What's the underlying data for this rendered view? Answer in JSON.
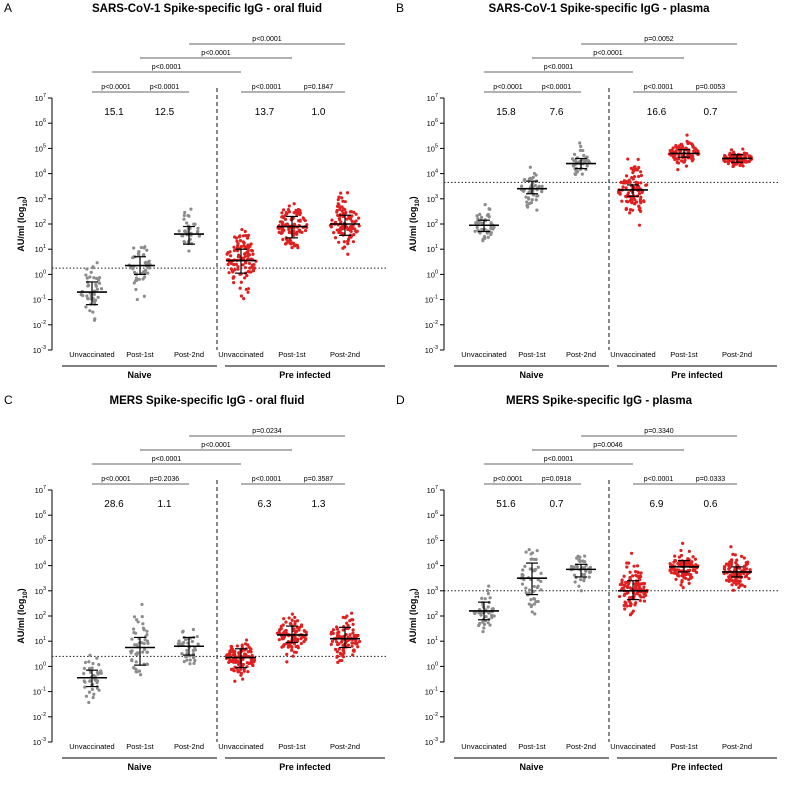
{
  "chart_data": [
    {
      "type": "scatter",
      "panel_letter": "A",
      "title": "SARS-CoV-1 Spike-specific IgG - oral fluid",
      "ylabel_main": "AU/ml (log",
      "ylabel_sub": "10",
      "ylabel_end": ")",
      "yscale": "log10",
      "ylim_exp": [
        -3,
        7
      ],
      "categories": [
        "Unvaccinated",
        "Post-1st",
        "Post-2nd",
        "Unvaccinated",
        "Post-1st",
        "Post-2nd"
      ],
      "groups": [
        {
          "name": "Naive",
          "color": "#8c8c8c"
        },
        {
          "name": "Pre infected",
          "color": "#e02020"
        }
      ],
      "threshold_log": 0.25,
      "series": [
        {
          "group": "Naive",
          "category": "Unvaccinated",
          "n": 45,
          "median_log": -0.7,
          "q1_log": -1.2,
          "q3_log": -0.3,
          "spread": 0.5
        },
        {
          "group": "Naive",
          "category": "Post-1st",
          "n": 50,
          "median_log": 0.35,
          "q1_log": 0.0,
          "q3_log": 0.7,
          "spread": 0.45
        },
        {
          "group": "Naive",
          "category": "Post-2nd",
          "n": 40,
          "median_log": 1.6,
          "q1_log": 1.2,
          "q3_log": 1.9,
          "spread": 0.35
        },
        {
          "group": "Pre infected",
          "category": "Unvaccinated",
          "n": 110,
          "median_log": 0.55,
          "q1_log": 0.05,
          "q3_log": 1.0,
          "spread": 0.55
        },
        {
          "group": "Pre infected",
          "category": "Post-1st",
          "n": 100,
          "median_log": 1.9,
          "q1_log": 1.45,
          "q3_log": 2.3,
          "spread": 0.45
        },
        {
          "group": "Pre infected",
          "category": "Post-2nd",
          "n": 100,
          "median_log": 2.0,
          "q1_log": 1.55,
          "q3_log": 2.35,
          "spread": 0.45
        }
      ],
      "fold_changes": [
        "15.1",
        "12.5",
        "13.7",
        "1.0"
      ],
      "comparisons": [
        {
          "from": 0,
          "to": 1,
          "label": "p<0.0001"
        },
        {
          "from": 1,
          "to": 2,
          "label": "p<0.0001"
        },
        {
          "from": 3,
          "to": 4,
          "label": "p<0.0001"
        },
        {
          "from": 4,
          "to": 5,
          "label": "p=0.1847"
        },
        {
          "from": 0,
          "to": 3,
          "label": "p<0.0001"
        },
        {
          "from": 1,
          "to": 4,
          "label": "p<0.0001"
        },
        {
          "from": 2,
          "to": 5,
          "label": "p<0.0001"
        }
      ]
    },
    {
      "type": "scatter",
      "panel_letter": "B",
      "title": "SARS-CoV-1 Spike-specific IgG - plasma",
      "ylabel_main": "AU/ml (log",
      "ylabel_sub": "10",
      "ylabel_end": ")",
      "yscale": "log10",
      "ylim_exp": [
        -3,
        7
      ],
      "categories": [
        "Unvaccinated",
        "Post-1st",
        "Post-2nd",
        "Unvaccinated",
        "Post-1st",
        "Post-2nd"
      ],
      "groups": [
        {
          "name": "Naive",
          "color": "#8c8c8c"
        },
        {
          "name": "Pre infected",
          "color": "#e02020"
        }
      ],
      "threshold_log": 3.65,
      "series": [
        {
          "group": "Naive",
          "category": "Unvaccinated",
          "n": 45,
          "median_log": 1.95,
          "q1_log": 1.7,
          "q3_log": 2.15,
          "spread": 0.35
        },
        {
          "group": "Naive",
          "category": "Post-1st",
          "n": 50,
          "median_log": 3.4,
          "q1_log": 3.2,
          "q3_log": 3.7,
          "spread": 0.35
        },
        {
          "group": "Naive",
          "category": "Post-2nd",
          "n": 40,
          "median_log": 4.4,
          "q1_log": 4.2,
          "q3_log": 4.6,
          "spread": 0.25
        },
        {
          "group": "Pre infected",
          "category": "Unvaccinated",
          "n": 110,
          "median_log": 3.35,
          "q1_log": 3.1,
          "q3_log": 3.55,
          "spread": 0.45
        },
        {
          "group": "Pre infected",
          "category": "Post-1st",
          "n": 100,
          "median_log": 4.8,
          "q1_log": 4.65,
          "q3_log": 4.95,
          "spread": 0.22
        },
        {
          "group": "Pre infected",
          "category": "Post-2nd",
          "n": 100,
          "median_log": 4.6,
          "q1_log": 4.45,
          "q3_log": 4.75,
          "spread": 0.15
        }
      ],
      "fold_changes": [
        "15.8",
        "7.6",
        "16.6",
        "0.7"
      ],
      "comparisons": [
        {
          "from": 0,
          "to": 1,
          "label": "p<0.0001"
        },
        {
          "from": 1,
          "to": 2,
          "label": "p<0.0001"
        },
        {
          "from": 3,
          "to": 4,
          "label": "p<0.0001"
        },
        {
          "from": 4,
          "to": 5,
          "label": "p=0.0053"
        },
        {
          "from": 0,
          "to": 3,
          "label": "p<0.0001"
        },
        {
          "from": 1,
          "to": 4,
          "label": "p<0.0001"
        },
        {
          "from": 2,
          "to": 5,
          "label": "p=0.0052"
        }
      ]
    },
    {
      "type": "scatter",
      "panel_letter": "C",
      "title": "MERS Spike-specific IgG - oral fluid",
      "ylabel_main": "AU/ml (log",
      "ylabel_sub": "10",
      "ylabel_end": ")",
      "yscale": "log10",
      "ylim_exp": [
        -3,
        7
      ],
      "categories": [
        "Unvaccinated",
        "Post-1st",
        "Post-2nd",
        "Unvaccinated",
        "Post-1st",
        "Post-2nd"
      ],
      "groups": [
        {
          "name": "Naive",
          "color": "#8c8c8c"
        },
        {
          "name": "Pre infected",
          "color": "#e02020"
        }
      ],
      "threshold_log": 0.4,
      "series": [
        {
          "group": "Naive",
          "category": "Unvaccinated",
          "n": 45,
          "median_log": -0.45,
          "q1_log": -0.8,
          "q3_log": -0.15,
          "spread": 0.4
        },
        {
          "group": "Naive",
          "category": "Post-1st",
          "n": 50,
          "median_log": 0.75,
          "q1_log": 0.05,
          "q3_log": 1.15,
          "spread": 0.6
        },
        {
          "group": "Naive",
          "category": "Post-2nd",
          "n": 40,
          "median_log": 0.8,
          "q1_log": 0.45,
          "q3_log": 1.15,
          "spread": 0.4
        },
        {
          "group": "Pre infected",
          "category": "Unvaccinated",
          "n": 110,
          "median_log": 0.35,
          "q1_log": -0.05,
          "q3_log": 0.7,
          "spread": 0.4
        },
        {
          "group": "Pre infected",
          "category": "Post-1st",
          "n": 100,
          "median_log": 1.25,
          "q1_log": 0.95,
          "q3_log": 1.6,
          "spread": 0.4
        },
        {
          "group": "Pre infected",
          "category": "Post-2nd",
          "n": 100,
          "median_log": 1.1,
          "q1_log": 0.75,
          "q3_log": 1.55,
          "spread": 0.45
        }
      ],
      "fold_changes": [
        "28.6",
        "1.1",
        "6.3",
        "1.3"
      ],
      "comparisons": [
        {
          "from": 0,
          "to": 1,
          "label": "p<0.0001"
        },
        {
          "from": 1,
          "to": 2,
          "label": "p=0.2036"
        },
        {
          "from": 3,
          "to": 4,
          "label": "p<0.0001"
        },
        {
          "from": 4,
          "to": 5,
          "label": "p=0.3587"
        },
        {
          "from": 0,
          "to": 3,
          "label": "p<0.0001"
        },
        {
          "from": 1,
          "to": 4,
          "label": "p<0.0001"
        },
        {
          "from": 2,
          "to": 5,
          "label": "p=0.0234"
        }
      ]
    },
    {
      "type": "scatter",
      "panel_letter": "D",
      "title": "MERS Spike-specific IgG - plasma",
      "ylabel_main": "AU/ml (log",
      "ylabel_sub": "10",
      "ylabel_end": ")",
      "yscale": "log10",
      "ylim_exp": [
        -3,
        7
      ],
      "categories": [
        "Unvaccinated",
        "Post-1st",
        "Post-2nd",
        "Unvaccinated",
        "Post-1st",
        "Post-2nd"
      ],
      "groups": [
        {
          "name": "Naive",
          "color": "#8c8c8c"
        },
        {
          "name": "Pre infected",
          "color": "#e02020"
        }
      ],
      "threshold_log": 3.0,
      "series": [
        {
          "group": "Naive",
          "category": "Unvaccinated",
          "n": 45,
          "median_log": 2.2,
          "q1_log": 1.85,
          "q3_log": 2.55,
          "spread": 0.4
        },
        {
          "group": "Naive",
          "category": "Post-1st",
          "n": 50,
          "median_log": 3.5,
          "q1_log": 2.85,
          "q3_log": 4.1,
          "spread": 0.65
        },
        {
          "group": "Naive",
          "category": "Post-2nd",
          "n": 40,
          "median_log": 3.85,
          "q1_log": 3.55,
          "q3_log": 4.05,
          "spread": 0.3
        },
        {
          "group": "Pre infected",
          "category": "Unvaccinated",
          "n": 110,
          "median_log": 3.0,
          "q1_log": 2.65,
          "q3_log": 3.4,
          "spread": 0.45
        },
        {
          "group": "Pre infected",
          "category": "Post-1st",
          "n": 100,
          "median_log": 3.95,
          "q1_log": 3.75,
          "q3_log": 4.2,
          "spread": 0.35
        },
        {
          "group": "Pre infected",
          "category": "Post-2nd",
          "n": 100,
          "median_log": 3.75,
          "q1_log": 3.55,
          "q3_log": 3.95,
          "spread": 0.35
        }
      ],
      "fold_changes": [
        "51.6",
        "0.7",
        "6.9",
        "0.6"
      ],
      "comparisons": [
        {
          "from": 0,
          "to": 1,
          "label": "p<0.0001"
        },
        {
          "from": 1,
          "to": 2,
          "label": "p=0.0918"
        },
        {
          "from": 3,
          "to": 4,
          "label": "p<0.0001"
        },
        {
          "from": 4,
          "to": 5,
          "label": "p=0.0333"
        },
        {
          "from": 0,
          "to": 3,
          "label": "p<0.0001"
        },
        {
          "from": 1,
          "to": 4,
          "label": "p=0.0046"
        },
        {
          "from": 2,
          "to": 5,
          "label": "p=0.3340"
        }
      ]
    }
  ]
}
